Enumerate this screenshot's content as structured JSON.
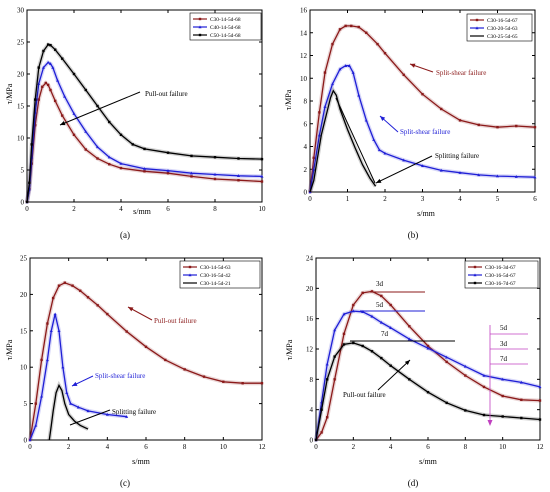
{
  "chart_data": [
    {
      "panel": "(a)",
      "type": "line",
      "xlabel": "s/mm",
      "ylabel": "τ/MPa",
      "xlim": [
        0,
        10
      ],
      "ylim": [
        0,
        30
      ],
      "xticks": [
        0,
        2,
        4,
        6,
        8,
        10
      ],
      "yticks": [
        0,
        5,
        10,
        15,
        20,
        25,
        30
      ],
      "legend": "top-right",
      "series": [
        {
          "name": "C30-14-5d-68",
          "color": "#8b1a1a",
          "marker": "square",
          "x": [
            0,
            0.1,
            0.2,
            0.35,
            0.5,
            0.65,
            0.8,
            0.9,
            1.0,
            1.2,
            1.5,
            2.0,
            2.5,
            3.0,
            3.5,
            4.0,
            5.0,
            6.0,
            7.0,
            8.0,
            9.0,
            10.0
          ],
          "y": [
            0,
            2,
            6,
            12,
            16,
            18,
            18.6,
            18.3,
            17.5,
            15.8,
            13.5,
            10.5,
            8.2,
            6.8,
            5.9,
            5.3,
            4.8,
            4.5,
            4.0,
            3.6,
            3.4,
            3.2
          ]
        },
        {
          "name": "C40-14-5d-68",
          "color": "#1f1fd6",
          "marker": "triangle",
          "x": [
            0,
            0.1,
            0.2,
            0.35,
            0.5,
            0.7,
            0.9,
            1.0,
            1.1,
            1.3,
            1.6,
            2.0,
            2.5,
            3.0,
            3.5,
            4.0,
            5.0,
            6.0,
            7.0,
            8.0,
            9.0,
            10.0
          ],
          "y": [
            0,
            2,
            7,
            14,
            18.5,
            21,
            21.8,
            21.6,
            21,
            19,
            16.5,
            13.8,
            11.0,
            8.6,
            7.0,
            6.0,
            5.2,
            4.9,
            4.5,
            4.3,
            4.1,
            4.0
          ]
        },
        {
          "name": "C50-14-5d-68",
          "color": "#000000",
          "marker": "square",
          "x": [
            0,
            0.1,
            0.2,
            0.35,
            0.5,
            0.7,
            0.9,
            1.0,
            1.2,
            1.5,
            2.0,
            2.5,
            3.0,
            3.5,
            4.0,
            4.5,
            5.0,
            6.0,
            7.0,
            8.0,
            9.0,
            10.0
          ],
          "y": [
            0,
            3,
            9,
            16,
            21,
            23.6,
            24.6,
            24.5,
            23.8,
            22.4,
            20.0,
            17.5,
            15.0,
            12.5,
            10.5,
            9.0,
            8.3,
            7.7,
            7.2,
            7.0,
            6.8,
            6.7
          ]
        }
      ],
      "annotations": [
        "Pull-out failure"
      ]
    },
    {
      "panel": "(b)",
      "type": "line",
      "xlabel": "s/mm",
      "ylabel": "τ/MPa",
      "xlim": [
        0,
        6
      ],
      "ylim": [
        0,
        16
      ],
      "xticks": [
        0,
        1,
        2,
        3,
        4,
        5,
        6
      ],
      "yticks": [
        0,
        2,
        4,
        6,
        8,
        10,
        12,
        14,
        16
      ],
      "legend": "top-right",
      "series": [
        {
          "name": "C30-16-5d-67",
          "color": "#8b1a1a",
          "marker": "square",
          "x": [
            0,
            0.1,
            0.25,
            0.4,
            0.6,
            0.8,
            0.95,
            1.1,
            1.3,
            1.5,
            1.8,
            2.0,
            2.5,
            3.0,
            3.5,
            4.0,
            4.5,
            5.0,
            5.5,
            6.0
          ],
          "y": [
            0,
            3,
            7,
            10.5,
            13,
            14.3,
            14.6,
            14.6,
            14.5,
            14.0,
            13.0,
            12.2,
            10.3,
            8.6,
            7.3,
            6.3,
            5.9,
            5.7,
            5.8,
            5.7
          ]
        },
        {
          "name": "C30-20-5d-63",
          "color": "#1f1fd6",
          "marker": "triangle",
          "x": [
            0,
            0.1,
            0.25,
            0.4,
            0.6,
            0.8,
            0.95,
            1.05,
            1.15,
            1.3,
            1.5,
            1.7,
            1.85,
            2.0,
            2.5,
            3.0,
            3.5,
            4.0,
            4.5,
            5.0,
            5.5,
            6.0
          ],
          "y": [
            0,
            2,
            5,
            7.5,
            9.5,
            10.8,
            11.1,
            11.1,
            10.5,
            8.5,
            6.3,
            4.6,
            3.7,
            3.4,
            2.8,
            2.3,
            1.9,
            1.7,
            1.5,
            1.4,
            1.35,
            1.3
          ]
        },
        {
          "name": "C30-25-5d-65",
          "color": "#000000",
          "marker": "none",
          "x": [
            0,
            0.1,
            0.2,
            0.3,
            0.45,
            0.55,
            0.62,
            0.7,
            0.8,
            1.0,
            1.2,
            1.4,
            1.6,
            1.75
          ],
          "y": [
            0,
            1,
            3,
            5,
            7,
            8.3,
            8.9,
            8.5,
            7.3,
            5.5,
            3.9,
            2.4,
            1.2,
            0.5
          ]
        }
      ],
      "annotations": [
        "Split-shear failure",
        "Split-shear failure",
        "Splitting failure"
      ]
    },
    {
      "panel": "(c)",
      "type": "line",
      "xlabel": "s/mm",
      "ylabel": "τ/MPa",
      "xlim": [
        0,
        12
      ],
      "ylim": [
        0,
        25
      ],
      "xticks": [
        0,
        2,
        4,
        6,
        8,
        10,
        12
      ],
      "yticks": [
        0,
        5,
        10,
        15,
        20,
        25
      ],
      "legend": "top-right",
      "series": [
        {
          "name": "C30-14-5d-63",
          "color": "#8b1a1a",
          "marker": "square",
          "x": [
            0,
            0.3,
            0.6,
            0.9,
            1.2,
            1.5,
            1.8,
            2.2,
            2.6,
            3.0,
            3.5,
            4.0,
            5.0,
            6.0,
            7.0,
            8.0,
            9.0,
            10.0,
            11.0,
            12.0
          ],
          "y": [
            0,
            5,
            11,
            16,
            19.5,
            21.2,
            21.6,
            21.2,
            20.5,
            19.6,
            18.5,
            17.3,
            14.9,
            12.8,
            11.0,
            9.7,
            8.7,
            8.0,
            7.8,
            7.8
          ]
        },
        {
          "name": "C30-16-5d-42",
          "color": "#1f1fd6",
          "marker": "triangle",
          "x": [
            0,
            0.3,
            0.6,
            0.9,
            1.1,
            1.3,
            1.5,
            1.7,
            1.9,
            2.1,
            2.5,
            3.0,
            4.0,
            5.0
          ],
          "y": [
            0,
            2,
            6,
            11,
            15,
            17.3,
            15,
            10,
            6.5,
            5.0,
            4.5,
            4.0,
            3.5,
            3.2
          ]
        },
        {
          "name": "C30-14-5d-21",
          "color": "#000000",
          "marker": "none",
          "x": [
            1.0,
            1.1,
            1.2,
            1.35,
            1.5,
            1.65,
            1.8,
            2.0,
            2.3,
            2.6,
            3.0
          ],
          "y": [
            0,
            2,
            4,
            6.5,
            7.5,
            6.8,
            5.0,
            3.5,
            2.6,
            2.0,
            1.5
          ]
        }
      ],
      "annotations": [
        "Pull-out failure",
        "Split-shear failure",
        "Splitting failure"
      ]
    },
    {
      "panel": "(d)",
      "type": "line",
      "xlabel": "s/mm",
      "ylabel": "τ/MPa",
      "xlim": [
        0,
        12
      ],
      "ylim": [
        0,
        24
      ],
      "xticks": [
        0,
        2,
        4,
        6,
        8,
        10,
        12
      ],
      "yticks": [
        0,
        4,
        8,
        12,
        16,
        20,
        24
      ],
      "legend": "top-right",
      "series": [
        {
          "name": "C30-16-3d-67",
          "color": "#8b1a1a",
          "marker": "square",
          "x": [
            0,
            0.3,
            0.6,
            1.0,
            1.5,
            2.0,
            2.5,
            3.0,
            3.5,
            4.0,
            5.0,
            6.0,
            7.0,
            8.0,
            9.0,
            10.0,
            11.0,
            12.0
          ],
          "y": [
            0,
            1,
            3,
            8,
            14,
            17.8,
            19.4,
            19.6,
            19.0,
            17.8,
            15.0,
            12.4,
            10.3,
            8.5,
            7.0,
            5.8,
            5.3,
            5.2
          ]
        },
        {
          "name": "C30-16-5d-67",
          "color": "#1f1fd6",
          "marker": "triangle",
          "x": [
            0,
            0.3,
            0.6,
            1.0,
            1.5,
            2.0,
            2.5,
            3.0,
            3.5,
            4.0,
            5.0,
            6.0,
            7.0,
            8.0,
            9.0,
            10.0,
            11.0,
            12.0
          ],
          "y": [
            0,
            5,
            10,
            14.5,
            16.6,
            17.0,
            16.9,
            16.3,
            15.5,
            14.8,
            13.3,
            12.1,
            10.9,
            9.7,
            8.5,
            8.0,
            7.6,
            7.0
          ]
        },
        {
          "name": "C30-16-7d-67",
          "color": "#000000",
          "marker": "square",
          "x": [
            0,
            0.3,
            0.6,
            1.0,
            1.5,
            2.0,
            2.5,
            3.0,
            3.5,
            4.0,
            5.0,
            6.0,
            7.0,
            8.0,
            9.0,
            10.0,
            11.0,
            12.0
          ],
          "y": [
            0,
            4,
            8,
            11,
            12.6,
            12.8,
            12.4,
            11.7,
            10.8,
            9.8,
            8.0,
            6.3,
            4.9,
            3.9,
            3.3,
            3.1,
            2.9,
            2.7
          ]
        }
      ],
      "annotations": [
        "3d",
        "5d",
        "7d",
        "Pull-out failure",
        "5d",
        "3d",
        "7d"
      ]
    }
  ]
}
